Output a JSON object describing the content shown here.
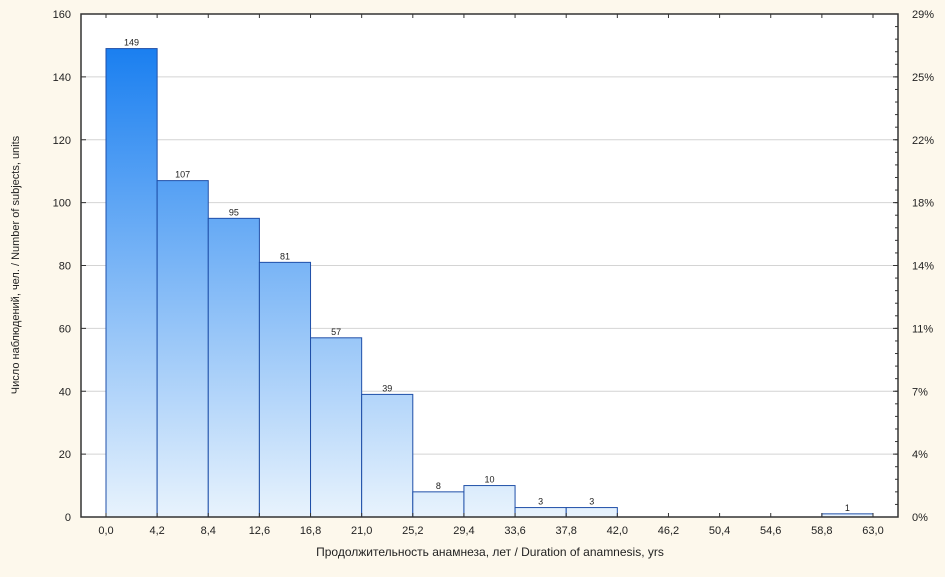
{
  "chart_data": {
    "type": "bar",
    "subtype": "histogram",
    "bin_edges": [
      0.0,
      4.2,
      8.4,
      12.6,
      16.8,
      21.0,
      25.2,
      29.4,
      33.6,
      37.8,
      42.0,
      46.2,
      50.4,
      54.6,
      58.8,
      63.0
    ],
    "x_tick_labels": [
      "0,0",
      "4,2",
      "8,4",
      "12,6",
      "16,8",
      "21,0",
      "25,2",
      "29,4",
      "33,6",
      "37,8",
      "42,0",
      "46,2",
      "50,4",
      "54,6",
      "58,8",
      "63,0"
    ],
    "values": [
      149,
      107,
      95,
      81,
      57,
      39,
      8,
      10,
      3,
      3,
      0,
      0,
      0,
      0,
      1
    ],
    "data_labels": [
      "149",
      "107",
      "95",
      "81",
      "57",
      "39",
      "8",
      "10",
      "3",
      "3",
      "",
      "",
      "",
      "",
      "1"
    ],
    "xlabel": "Продолжительность анамнеза, лет / Duration of anamnesis, yrs",
    "ylabel": "Число наблюдений, чел. / Number of subjects, units",
    "ylim": [
      0,
      160
    ],
    "y_ticks": [
      "0",
      "20",
      "40",
      "60",
      "80",
      "100",
      "120",
      "140",
      "160"
    ],
    "y2_ticks": [
      "0%",
      "4%",
      "7%",
      "11%",
      "14%",
      "18%",
      "22%",
      "25%",
      "29%"
    ],
    "grid": "horizontal",
    "colors": {
      "bar_top": "#1a7ff0",
      "bar_bottom": "#e8f3fd",
      "bar_edge": "#1f4fa8",
      "background": "#fdf8ec"
    }
  }
}
